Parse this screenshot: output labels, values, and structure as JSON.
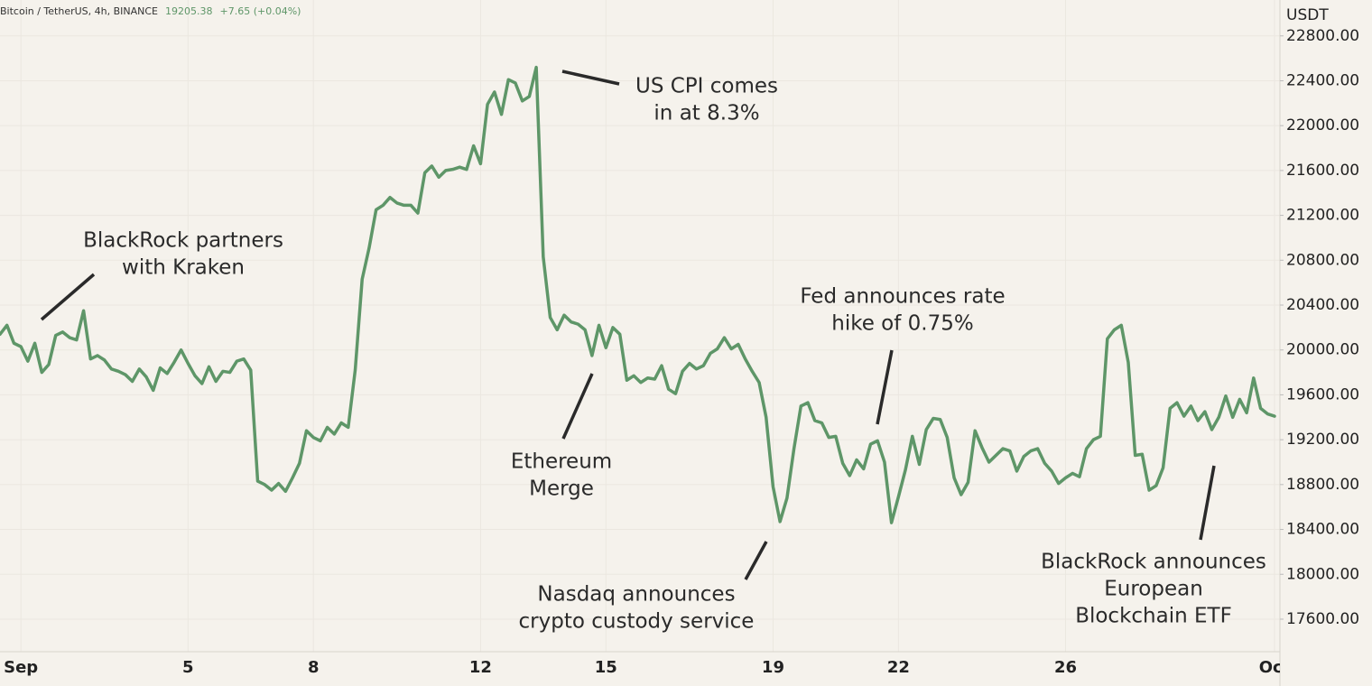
{
  "chart_data": {
    "type": "line",
    "title": "Bitcoin / TetherUS, 4h, BINANCE",
    "last_price": "19205.38",
    "change": "+7.65 (+0.04%)",
    "y_axis_label": "USDT",
    "categories": [
      null,
      null,
      null,
      "Sep",
      null,
      null,
      null,
      null,
      null,
      null,
      null,
      null,
      null,
      null,
      null,
      null,
      null,
      null,
      null,
      null,
      null,
      null,
      null,
      null,
      null,
      null,
      null,
      "5",
      null,
      null,
      null,
      null,
      null,
      null,
      null,
      null,
      null,
      null,
      null,
      null,
      null,
      null,
      null,
      null,
      null,
      "8",
      null,
      null,
      null,
      null,
      null,
      null,
      null,
      null,
      null,
      null,
      null,
      null,
      null,
      null,
      null,
      null,
      null,
      null,
      null,
      null,
      null,
      null,
      null,
      "12",
      null,
      null,
      null,
      null,
      null,
      null,
      null,
      null,
      null,
      null,
      null,
      null,
      null,
      null,
      null,
      null,
      null,
      "15",
      null,
      null,
      null,
      null,
      null,
      null,
      null,
      null,
      null,
      null,
      null,
      null,
      null,
      null,
      null,
      null,
      null,
      null,
      null,
      null,
      null,
      null,
      null,
      "19",
      null,
      null,
      null,
      null,
      null,
      null,
      null,
      null,
      null,
      null,
      null,
      null,
      null,
      null,
      null,
      null,
      null,
      "22",
      null,
      null,
      null,
      null,
      null,
      null,
      null,
      null,
      null,
      null,
      null,
      null,
      null,
      null,
      null,
      null,
      null,
      null,
      null,
      null,
      null,
      null,
      null,
      "26",
      null,
      null,
      null,
      null,
      null,
      null,
      null,
      null,
      null,
      null,
      null,
      null,
      null,
      null,
      null,
      null,
      null,
      null,
      null,
      null,
      null,
      null,
      null,
      null,
      null,
      null,
      null,
      null,
      null,
      "Oct"
    ],
    "series": [
      {
        "name": "BTCUSDT",
        "color": "#5e9668",
        "values": [
          20140,
          20220,
          20060,
          20030,
          19900,
          20060,
          19800,
          19870,
          20130,
          20160,
          20110,
          20090,
          20350,
          19920,
          19950,
          19910,
          19830,
          19810,
          19780,
          19720,
          19830,
          19760,
          19640,
          19840,
          19790,
          19890,
          20000,
          19880,
          19770,
          19700,
          19850,
          19720,
          19810,
          19800,
          19900,
          19920,
          19820,
          18830,
          18800,
          18750,
          18810,
          18740,
          18860,
          18990,
          19280,
          19220,
          19190,
          19310,
          19250,
          19350,
          19310,
          19820,
          20630,
          20910,
          21250,
          21290,
          21360,
          21310,
          21290,
          21290,
          21220,
          21580,
          21640,
          21540,
          21600,
          21610,
          21630,
          21610,
          21820,
          21660,
          22190,
          22300,
          22100,
          22410,
          22380,
          22220,
          22260,
          22520,
          20830,
          20290,
          20180,
          20310,
          20250,
          20230,
          20180,
          19950,
          20220,
          20020,
          20200,
          20140,
          19730,
          19770,
          19710,
          19750,
          19740,
          19860,
          19650,
          19610,
          19810,
          19880,
          19830,
          19860,
          19970,
          20010,
          20110,
          20010,
          20050,
          19920,
          19810,
          19710,
          19400,
          18780,
          18470,
          18680,
          19120,
          19500,
          19530,
          19370,
          19350,
          19220,
          19230,
          18990,
          18880,
          19020,
          18940,
          19160,
          19190,
          19000,
          18460,
          18690,
          18930,
          19230,
          18980,
          19290,
          19390,
          19380,
          19220,
          18860,
          18710,
          18820,
          19280,
          19130,
          19000,
          19060,
          19120,
          19100,
          18920,
          19050,
          19100,
          19120,
          18990,
          18920,
          18810,
          18860,
          18900,
          18870,
          19120,
          19200,
          19230,
          20100,
          20180,
          20220,
          19890,
          19060,
          19070,
          18750,
          18790,
          18950,
          19480,
          19530,
          19410,
          19500,
          19370,
          19450,
          19290,
          19400,
          19590,
          19400,
          19560,
          19440,
          19750,
          19480,
          19430,
          19410
        ]
      }
    ],
    "ylim": [
      17310,
      23120
    ],
    "yticks": [
      {
        "value": 17600,
        "label": "17600.00"
      },
      {
        "value": 18000,
        "label": "18000.00"
      },
      {
        "value": 18400,
        "label": "18400.00"
      },
      {
        "value": 18800,
        "label": "18800.00"
      },
      {
        "value": 19200,
        "label": "19200.00"
      },
      {
        "value": 19600,
        "label": "19600.00"
      },
      {
        "value": 20000,
        "label": "20000.00"
      },
      {
        "value": 20400,
        "label": "20400.00"
      },
      {
        "value": 20800,
        "label": "20800.00"
      },
      {
        "value": 21200,
        "label": "21200.00"
      },
      {
        "value": 21600,
        "label": "21600.00"
      },
      {
        "value": 22000,
        "label": "22000.00"
      },
      {
        "value": 22400,
        "label": "22400.00"
      },
      {
        "value": 22800,
        "label": "22800.00"
      }
    ],
    "grid": true,
    "annotations": [
      [
        "BlackRock partners",
        "with Kraken"
      ],
      [
        "US CPI comes",
        "in at 8.3%"
      ],
      [
        "Ethereum",
        "Merge"
      ],
      [
        "Nasdaq announces",
        "crypto custody service"
      ],
      [
        "Fed announces rate",
        "hike of 0.75%"
      ],
      [
        "BlackRock announces",
        "European",
        "Blockchain ETF"
      ]
    ]
  }
}
